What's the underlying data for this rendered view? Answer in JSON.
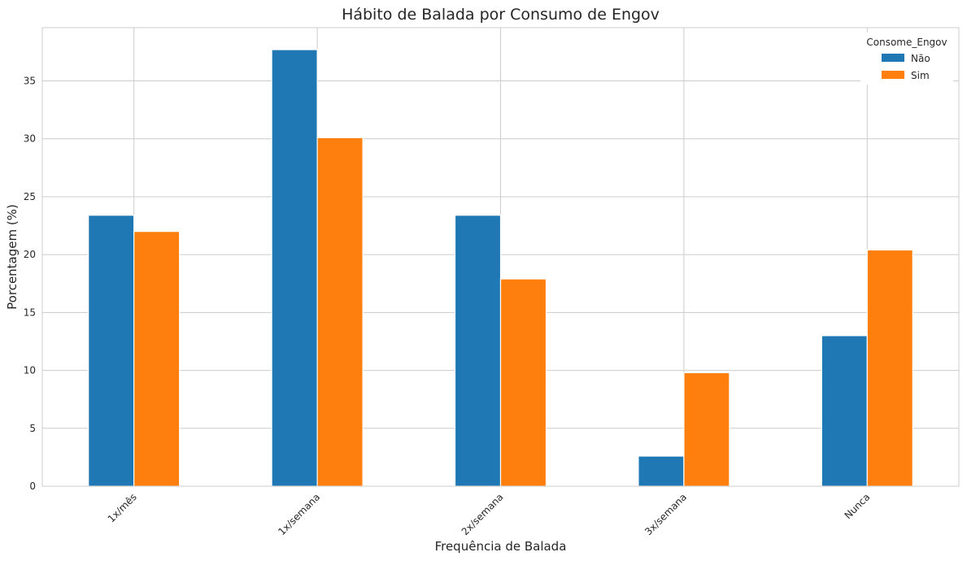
{
  "chart_data": {
    "type": "bar",
    "title": "Hábito de Balada por Consumo de Engov",
    "xlabel": "Frequência de Balada",
    "ylabel": "Porcentagem (%)",
    "categories": [
      "1x/mês",
      "1x/semana",
      "2x/semana",
      "3x/semana",
      "Nunca"
    ],
    "series": [
      {
        "name": "Não",
        "color": "#1f77b4",
        "values": [
          23.4,
          37.7,
          23.4,
          2.6,
          13.0
        ]
      },
      {
        "name": "Sim",
        "color": "#ff7f0e",
        "values": [
          22.0,
          30.1,
          17.9,
          9.8,
          20.4
        ]
      }
    ],
    "ylim": [
      0,
      39.6
    ],
    "yticks": [
      0,
      5,
      10,
      15,
      20,
      25,
      30,
      35
    ],
    "grid": true,
    "legend": {
      "title": "Consome_Engov",
      "placement": "top-right"
    }
  }
}
